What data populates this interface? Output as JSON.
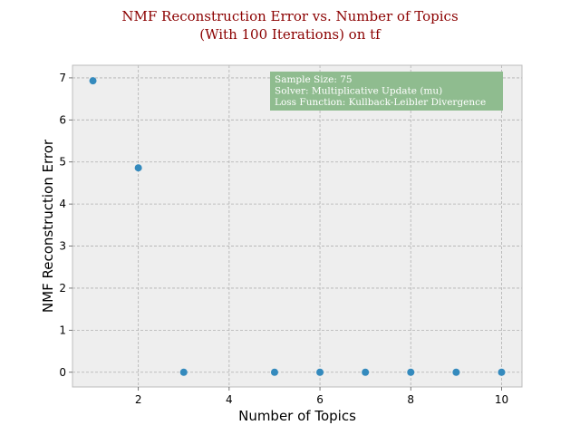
{
  "chart_data": {
    "type": "scatter",
    "title_lines": [
      "NMF Reconstruction Error vs. Number of Topics",
      "(With 100 Iterations) on tf"
    ],
    "xlabel": "Number of Topics",
    "ylabel": "NMF Reconstruction Error",
    "xlim": [
      0.55,
      10.45
    ],
    "ylim": [
      -0.35,
      7.3
    ],
    "xticks": [
      2,
      4,
      6,
      8,
      10
    ],
    "yticks": [
      0,
      1,
      2,
      3,
      4,
      5,
      6,
      7
    ],
    "grid": true,
    "series": [
      {
        "x": [
          1,
          2,
          3,
          5,
          6,
          7,
          8,
          9,
          10
        ],
        "y": [
          6.93,
          4.86,
          0,
          0,
          0,
          0,
          0,
          0,
          0
        ],
        "color": "#348abd"
      }
    ],
    "annotation": {
      "lines": [
        "Sample Size: 75",
        "Solver: Multiplicative Update (mu)",
        "Loss Function: Kullback-Leibler Divergence"
      ],
      "placement": "top-right",
      "background": "#8fbc8f"
    },
    "colors": {
      "title": "#8b0000",
      "plot_background": "#eeeeee",
      "marker": "#348abd"
    }
  }
}
